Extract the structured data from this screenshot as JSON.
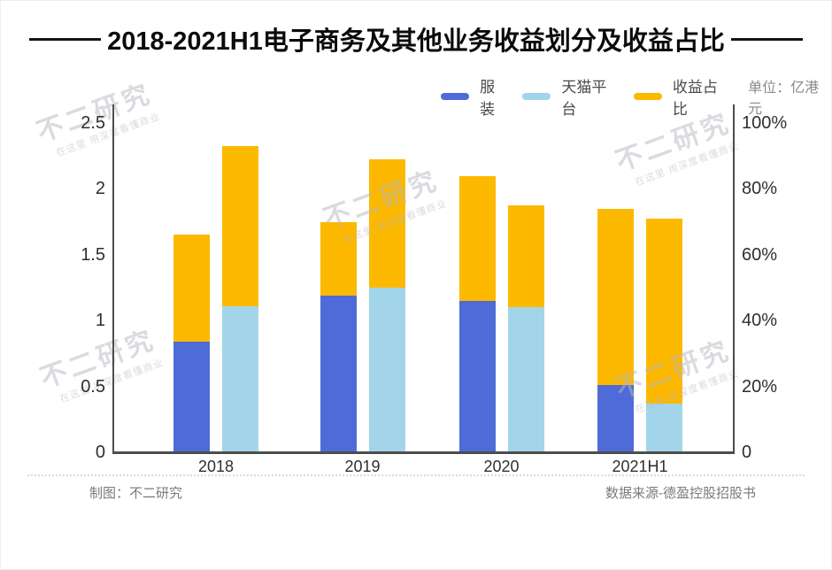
{
  "title": "2018-2021H1电子商务及其他业务收益划分及收益占比",
  "legend": {
    "items": [
      {
        "label": "服装",
        "color": "#4f6bd8"
      },
      {
        "label": "天猫平台",
        "color": "#a3d5ea"
      },
      {
        "label": "收益占比",
        "color": "#fcb900"
      }
    ],
    "unit_note": "单位：亿港元"
  },
  "watermark": {
    "text": "不二研究",
    "subtext": "在这里 用深度看懂商业"
  },
  "footer": {
    "left": "制图：不二研究",
    "right": "数据来源-德盈控股招股书"
  },
  "chart_data": {
    "type": "bar",
    "title": "2018-2021H1电子商务及其他业务收益划分及收益占比",
    "categories": [
      "2018",
      "2019",
      "2020",
      "2021H1"
    ],
    "left_axis": {
      "unit": "亿港元",
      "ticks": [
        "0",
        "0.5",
        "1",
        "1.5",
        "2",
        "2.5"
      ],
      "values": [
        0,
        0.5,
        1,
        1.5,
        2,
        2.5
      ],
      "max": 2.5
    },
    "right_axis": {
      "unit": "%",
      "ticks": [
        "0",
        "20%",
        "40%",
        "60%",
        "80%",
        "100%"
      ],
      "values": [
        0,
        20,
        40,
        60,
        80,
        100
      ],
      "max": 100
    },
    "series": [
      {
        "name": "服装",
        "axis": "left",
        "unit": "亿港元",
        "color": "#4f6bd8",
        "values": [
          0.84,
          1.19,
          1.15,
          0.51
        ]
      },
      {
        "name": "天猫平台",
        "axis": "left",
        "unit": "亿港元",
        "color": "#a3d5ea",
        "values": [
          1.11,
          1.25,
          1.1,
          0.37
        ]
      },
      {
        "name": "收益占比",
        "axis": "right",
        "unit": "%",
        "color": "#fcb900",
        "bar_top_over_fuzhuang_pct": [
          66,
          70,
          84,
          74
        ],
        "bar_top_over_tmall_pct": [
          93,
          89,
          75,
          71
        ]
      }
    ],
    "legend_position": "top-right",
    "grid": false
  }
}
